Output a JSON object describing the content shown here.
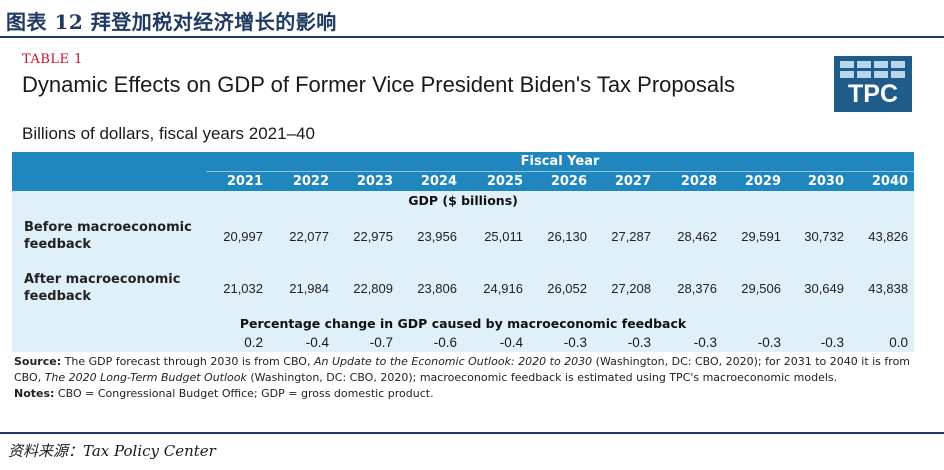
{
  "figure_title": "图表 12  拜登加税对经济增长的影响",
  "table_label": "TABLE 1",
  "table_title": "Dynamic Effects on GDP of Former Vice President Biden's Tax Proposals",
  "table_subtitle": "Billions of dollars, fiscal years 2021–40",
  "logo_text": "TPC",
  "header": {
    "fiscal_year": "Fiscal Year",
    "years": [
      "2021",
      "2022",
      "2023",
      "2024",
      "2025",
      "2026",
      "2027",
      "2028",
      "2029",
      "2030",
      "2040"
    ]
  },
  "gdp_section": "GDP ($ billions)",
  "rows": [
    {
      "label_line1": "Before macroeconomic",
      "label_line2": "feedback",
      "values": [
        "20,997",
        "22,077",
        "22,975",
        "23,956",
        "25,011",
        "26,130",
        "27,287",
        "28,462",
        "29,591",
        "30,732",
        "43,826"
      ]
    },
    {
      "label_line1": "After macroeconomic",
      "label_line2": "feedback",
      "values": [
        "21,032",
        "21,984",
        "22,809",
        "23,806",
        "24,916",
        "26,052",
        "27,208",
        "28,376",
        "29,506",
        "30,649",
        "43,838"
      ]
    }
  ],
  "pct_section": "Percentage change in GDP caused by macroeconomic feedback",
  "pct_values": [
    "0.2",
    "-0.4",
    "-0.7",
    "-0.6",
    "-0.4",
    "-0.3",
    "-0.3",
    "-0.3",
    "-0.3",
    "-0.3",
    "0.0"
  ],
  "notes": {
    "source_label": "Source:",
    "source_part1": " The GDP forecast through 2030 is from CBO, ",
    "source_italic1": "An Update to the Economic Outlook: 2020 to 2030",
    "source_part2": " (Washington, DC: CBO, 2020); for 2031 to 2040 it is from CBO, ",
    "source_italic2": "The 2020 Long-Term Budget Outlook",
    "source_part3": " (Washington, DC: CBO, 2020); macroeconomic feedback is estimated using TPC's macroeconomic models.",
    "notes_label": "Notes:",
    "notes_text": " CBO = Congressional Budget Office; GDP = gross domestic product."
  },
  "footer_source": "资料来源：Tax Policy Center"
}
